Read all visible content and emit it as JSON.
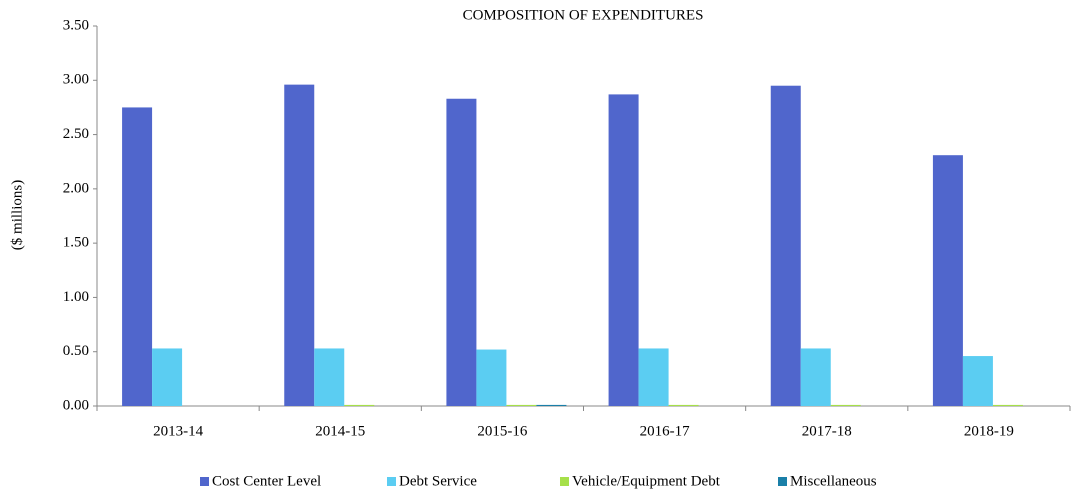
{
  "chart_data": {
    "type": "bar",
    "title": "COMPOSITION OF EXPENDITURES",
    "y_label": "($ millions)",
    "categories": [
      "2013-14",
      "2014-15",
      "2015-16",
      "2016-17",
      "2017-18",
      "2018-19"
    ],
    "series": [
      {
        "name": "Cost Center Level",
        "color": "#5066cc",
        "values": [
          2.75,
          2.96,
          2.83,
          2.87,
          2.95,
          2.31
        ]
      },
      {
        "name": "Debt Service",
        "color": "#5bcdf2",
        "values": [
          0.53,
          0.53,
          0.52,
          0.53,
          0.53,
          0.46
        ]
      },
      {
        "name": "Vehicle/Equipment Debt",
        "color": "#a6e04a",
        "values": [
          0,
          0.01,
          0.01,
          0.01,
          0.01,
          0.01
        ]
      },
      {
        "name": "Miscellaneous",
        "color": "#1a7fa8",
        "values": [
          0,
          0,
          0.01,
          0,
          0,
          0
        ]
      }
    ],
    "ylim": [
      0,
      3.5
    ],
    "yticks": [
      {
        "value": 0,
        "label": "0.00"
      },
      {
        "value": 0.5,
        "label": "0.50"
      },
      {
        "value": 1,
        "label": "1.00"
      },
      {
        "value": 1.5,
        "label": "1.50"
      },
      {
        "value": 2,
        "label": "2.00"
      },
      {
        "value": 2.5,
        "label": "2.50"
      },
      {
        "value": 3,
        "label": "3.00"
      },
      {
        "value": 3.5,
        "label": "3.50"
      }
    ],
    "legend": "bottom"
  }
}
